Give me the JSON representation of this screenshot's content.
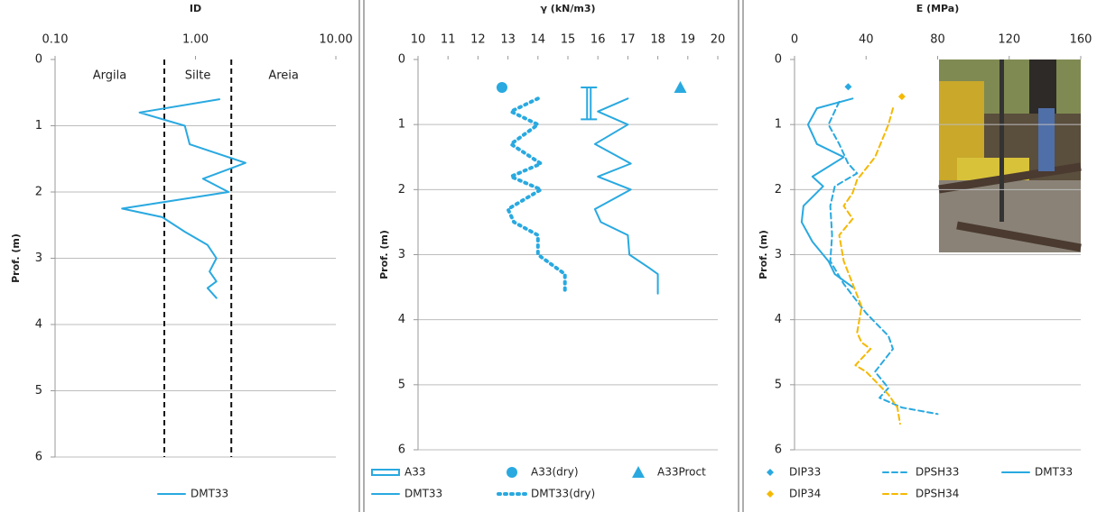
{
  "chart_data": [
    {
      "type": "profile",
      "x_label": "ID",
      "y_label": "Prof. (m)",
      "xlog": true,
      "xlim": [
        0.1,
        10
      ],
      "xticks": [
        {
          "value": 0.1,
          "label": "0.10"
        },
        {
          "value": 1,
          "label": "1.00"
        },
        {
          "value": 10,
          "label": "10.00"
        }
      ],
      "ylim": [
        0,
        6
      ],
      "yticks": [
        0,
        1,
        2,
        3,
        4,
        5,
        6
      ],
      "grid": true,
      "vlines": [
        0.6,
        1.8
      ],
      "zones": [
        "Argila",
        "Silte",
        "Areia"
      ],
      "series": [
        {
          "name": "DMT33",
          "color": "#29a9e0",
          "style": "solid",
          "x": [
            1.48,
            0.4,
            0.84,
            0.91,
            2.27,
            1.13,
            1.72,
            0.3,
            0.58,
            0.84,
            1.22,
            1.41,
            1.26,
            1.41,
            1.22,
            1.41
          ],
          "y": [
            0.6,
            0.8,
            1.0,
            1.28,
            1.56,
            1.8,
            2.0,
            2.25,
            2.38,
            2.6,
            2.8,
            3.0,
            3.2,
            3.35,
            3.45,
            3.6
          ]
        }
      ]
    },
    {
      "type": "profile",
      "x_label": "γ (kN/m3)",
      "y_label": "Prof. (m)",
      "xlog": false,
      "xlim": [
        10,
        20
      ],
      "xticks": [
        10,
        11,
        12,
        13,
        14,
        15,
        16,
        17,
        18,
        19,
        20
      ],
      "ylim": [
        0,
        6
      ],
      "yticks": [
        0,
        1,
        2,
        3,
        4,
        5,
        6
      ],
      "grid": true,
      "series": [
        {
          "name": "A33",
          "color": "#29a9e0",
          "marker": "ibar",
          "x": [
            15.7,
            15.7
          ],
          "y": [
            0.43,
            0.92
          ]
        },
        {
          "name": "A33(dry)",
          "color": "#29a9e0",
          "marker": "circle",
          "x": [
            12.8
          ],
          "y": [
            0.43
          ]
        },
        {
          "name": "A33Proct",
          "color": "#29a9e0",
          "marker": "triangle",
          "x": [
            18.75
          ],
          "y": [
            0.43
          ]
        },
        {
          "name": "DMT33",
          "color": "#29a9e0",
          "style": "solid",
          "x": [
            17.0,
            16.0,
            17.0,
            15.9,
            17.1,
            16.0,
            17.1,
            15.9,
            16.1,
            17.0,
            17.05,
            17.7,
            18.0,
            18.0
          ],
          "y": [
            0.6,
            0.8,
            1.0,
            1.3,
            1.6,
            1.8,
            2.0,
            2.3,
            2.5,
            2.7,
            3.0,
            3.2,
            3.3,
            3.6
          ]
        },
        {
          "name": "DMT33(dry)",
          "color": "#29a9e0",
          "style": "dotted",
          "x": [
            14.0,
            13.1,
            14.0,
            13.1,
            14.1,
            13.1,
            14.1,
            13.0,
            13.2,
            14.0,
            14.0,
            14.6,
            14.9,
            14.9
          ],
          "y": [
            0.6,
            0.8,
            1.0,
            1.3,
            1.6,
            1.8,
            2.0,
            2.3,
            2.5,
            2.7,
            3.0,
            3.2,
            3.3,
            3.6
          ]
        }
      ]
    },
    {
      "type": "profile",
      "x_label": "E (MPa)",
      "y_label": "Prof. (m)",
      "xlog": false,
      "xlim": [
        0,
        160
      ],
      "xticks": [
        0,
        40,
        80,
        120,
        160
      ],
      "ylim": [
        0,
        6
      ],
      "yticks": [
        0,
        1,
        2,
        3,
        4,
        5,
        6
      ],
      "grid": true,
      "series": [
        {
          "name": "DIP33",
          "color": "#29a9e0",
          "marker": "diamond",
          "x": [
            30
          ],
          "y": [
            0.42
          ]
        },
        {
          "name": "DPSH33",
          "color": "#29a9e0",
          "style": "dashed",
          "x": [
            25,
            19,
            25,
            30,
            35,
            22.5,
            20,
            21,
            20,
            27.5,
            40,
            52.5,
            55,
            45,
            52.5,
            47.5,
            60,
            80
          ],
          "y": [
            0.65,
            1.0,
            1.3,
            1.6,
            1.75,
            1.95,
            2.25,
            2.7,
            3.1,
            3.45,
            3.9,
            4.25,
            4.45,
            4.8,
            5.05,
            5.2,
            5.35,
            5.45
          ]
        },
        {
          "name": "DMT33",
          "color": "#29a9e0",
          "style": "solid",
          "x": [
            32.5,
            12.5,
            7.5,
            12.5,
            27.5,
            10,
            16,
            5,
            4,
            10,
            19,
            22.5,
            32.5
          ],
          "y": [
            0.6,
            0.75,
            1.0,
            1.3,
            1.5,
            1.8,
            1.95,
            2.25,
            2.5,
            2.8,
            3.1,
            3.3,
            3.5
          ]
        },
        {
          "name": "DIP34",
          "color": "#f5b800",
          "marker": "diamond",
          "x": [
            60
          ],
          "y": [
            0.57
          ]
        },
        {
          "name": "DPSH34",
          "color": "#f5b800",
          "style": "dashed",
          "x": [
            55,
            52.5,
            45,
            35,
            32.5,
            27.5,
            32.5,
            25,
            27.5,
            32.5,
            37.5,
            35,
            37.5,
            42.5,
            34,
            40,
            52.5,
            57.5,
            59
          ],
          "y": [
            0.75,
            1.0,
            1.5,
            1.85,
            2.05,
            2.25,
            2.45,
            2.7,
            3.1,
            3.45,
            3.8,
            4.2,
            4.35,
            4.45,
            4.7,
            4.8,
            5.15,
            5.35,
            5.6
          ]
        }
      ]
    }
  ]
}
